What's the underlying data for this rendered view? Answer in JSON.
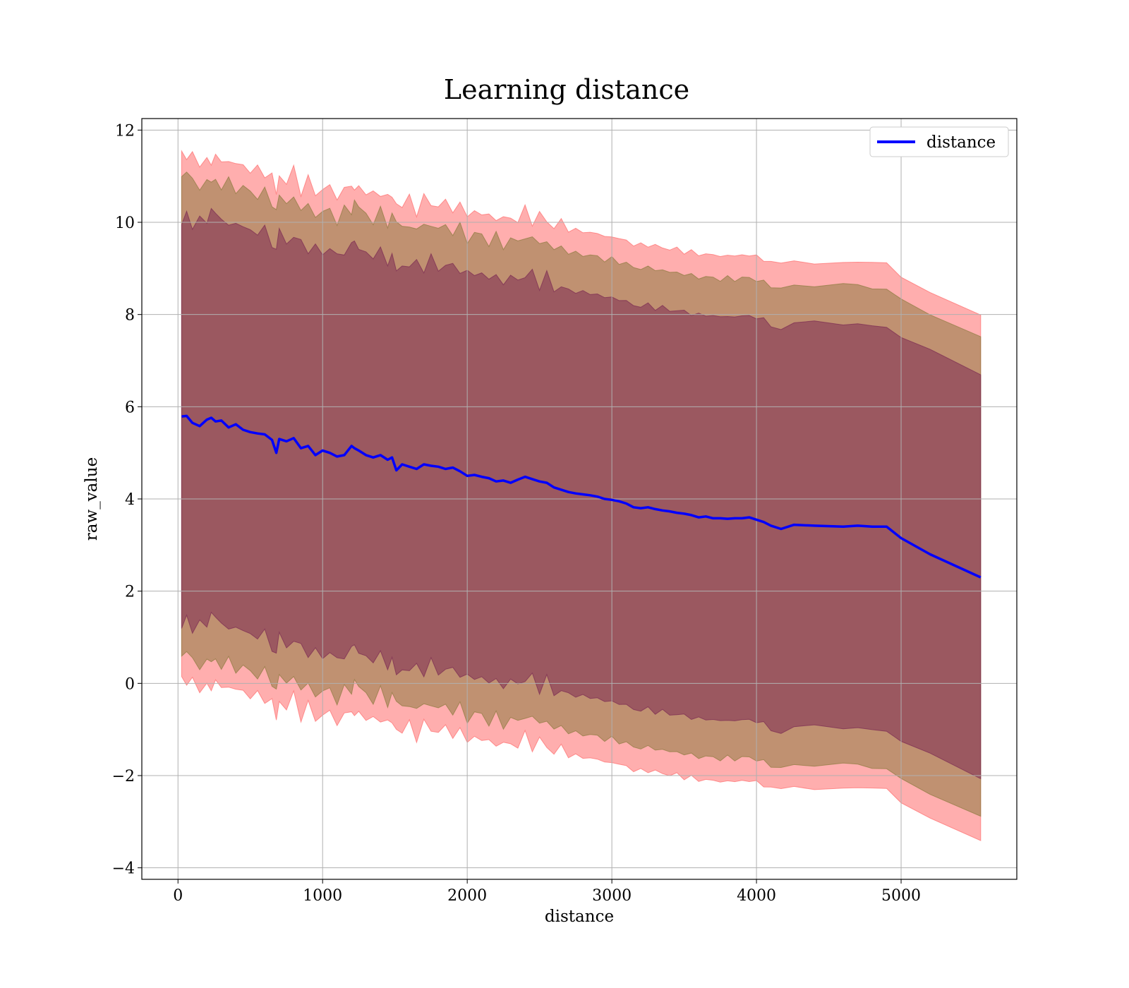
{
  "chart_data": {
    "type": "line",
    "title": "Learning distance",
    "xlabel": "distance",
    "ylabel": "raw_value",
    "xlim": [
      -250,
      5800
    ],
    "ylim": [
      -4.25,
      12.25
    ],
    "xticks": [
      0,
      1000,
      2000,
      3000,
      4000,
      5000
    ],
    "yticks": [
      -4,
      -2,
      0,
      2,
      4,
      6,
      8,
      10,
      12
    ],
    "xtick_labels": [
      "0",
      "1000",
      "2000",
      "3000",
      "4000",
      "5000"
    ],
    "ytick_labels": [
      "−4",
      "−2",
      "0",
      "2",
      "4",
      "6",
      "8",
      "10",
      "12"
    ],
    "grid": true,
    "legend": {
      "position": "top-right",
      "entries": [
        "distance"
      ]
    },
    "colors": {
      "line": "#0000ff",
      "band_outer": "#ff6b6b",
      "band_middle": "#8c7a3f",
      "band_inner": "#7b2a52"
    },
    "series": [
      {
        "name": "distance",
        "x": [
          25,
          60,
          100,
          150,
          200,
          230,
          260,
          300,
          350,
          400,
          450,
          500,
          550,
          600,
          650,
          680,
          700,
          750,
          800,
          850,
          900,
          950,
          1000,
          1050,
          1100,
          1150,
          1200,
          1220,
          1250,
          1300,
          1350,
          1400,
          1450,
          1480,
          1510,
          1550,
          1600,
          1650,
          1700,
          1750,
          1800,
          1850,
          1900,
          1950,
          2000,
          2050,
          2100,
          2150,
          2200,
          2250,
          2300,
          2350,
          2400,
          2450,
          2500,
          2550,
          2600,
          2650,
          2700,
          2750,
          2800,
          2850,
          2900,
          2950,
          3000,
          3050,
          3100,
          3150,
          3200,
          3250,
          3300,
          3350,
          3400,
          3450,
          3500,
          3550,
          3600,
          3650,
          3700,
          3750,
          3800,
          3850,
          3900,
          3950,
          4000,
          4050,
          4100,
          4170,
          4260,
          4400,
          4600,
          4700,
          4800,
          4900,
          5000,
          5200,
          5550
        ],
        "y": [
          5.79,
          5.8,
          5.65,
          5.58,
          5.72,
          5.76,
          5.68,
          5.7,
          5.55,
          5.62,
          5.5,
          5.45,
          5.42,
          5.4,
          5.28,
          5.0,
          5.3,
          5.25,
          5.32,
          5.1,
          5.15,
          4.95,
          5.05,
          5.0,
          4.92,
          4.95,
          5.15,
          5.1,
          5.05,
          4.95,
          4.9,
          4.95,
          4.85,
          4.9,
          4.62,
          4.75,
          4.7,
          4.65,
          4.75,
          4.72,
          4.7,
          4.65,
          4.68,
          4.6,
          4.5,
          4.52,
          4.48,
          4.45,
          4.38,
          4.4,
          4.35,
          4.42,
          4.48,
          4.43,
          4.38,
          4.35,
          4.25,
          4.2,
          4.15,
          4.12,
          4.1,
          4.08,
          4.05,
          4.0,
          3.98,
          3.95,
          3.9,
          3.82,
          3.8,
          3.82,
          3.78,
          3.75,
          3.73,
          3.7,
          3.68,
          3.65,
          3.6,
          3.62,
          3.58,
          3.58,
          3.57,
          3.58,
          3.58,
          3.6,
          3.55,
          3.5,
          3.42,
          3.35,
          3.44,
          3.42,
          3.4,
          3.42,
          3.4,
          3.4,
          3.15,
          2.8,
          2.3
        ]
      }
    ],
    "bands": [
      {
        "half_width_start": 5.7,
        "half_width_end": 5.7,
        "color_key": "band_outer"
      },
      {
        "half_width_start": 5.2,
        "half_width_end": 5.2,
        "color_key": "band_middle"
      },
      {
        "half_width_start": 4.38,
        "half_width_end": 4.38,
        "color_key": "band_inner"
      }
    ]
  }
}
